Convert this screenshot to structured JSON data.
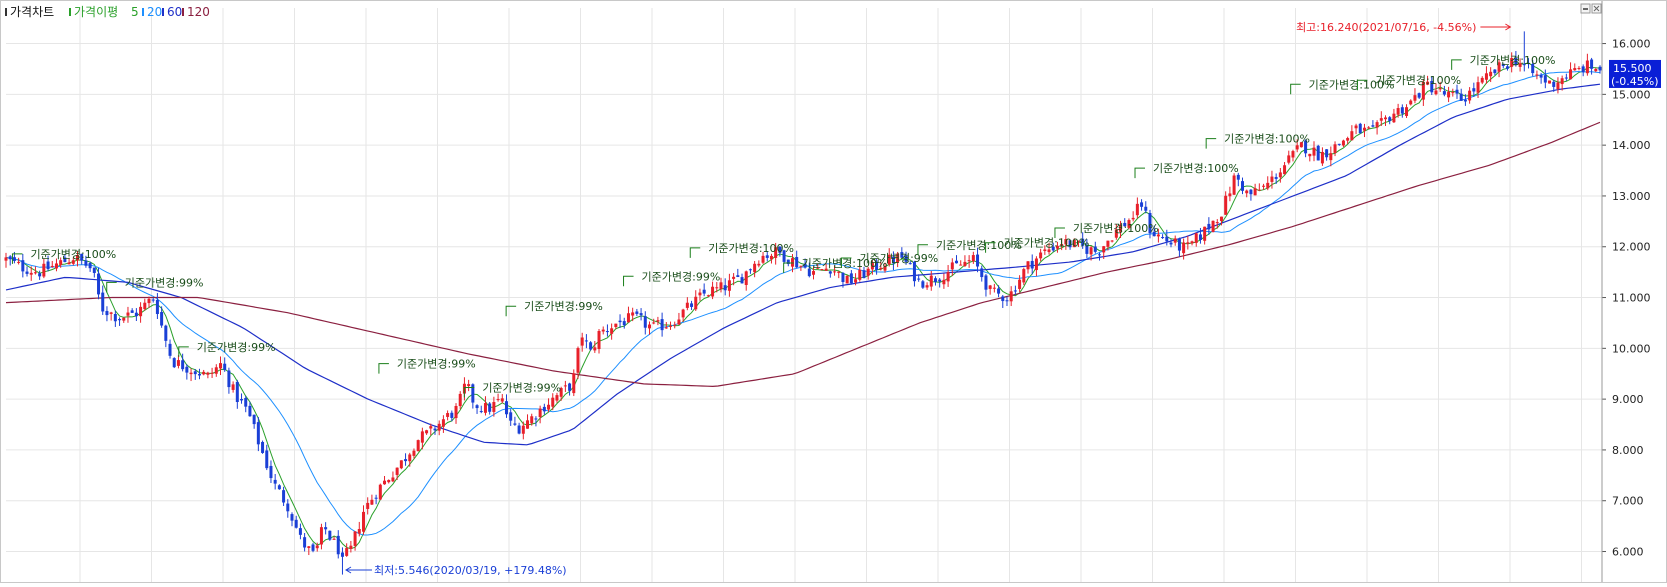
{
  "legend": {
    "title": "가격차트",
    "ma_label": "가격이평",
    "periods": [
      "5",
      "20",
      "60",
      "120"
    ]
  },
  "colors": {
    "up": "#e8202a",
    "down": "#1a3fd6",
    "ma5": "#2aa02a",
    "ma20": "#1e90ff",
    "ma60": "#1e2fc8",
    "ma120": "#8b2040",
    "grid": "#e6e6e6",
    "annotation": "#1a7f1a",
    "high": "#e8202a",
    "low": "#1a3fd6",
    "price_box": "#0a1fd6"
  },
  "icons": [
    "minimize-icon",
    "close-icon"
  ],
  "chart_data": {
    "type": "candlestick",
    "title": "가격차트",
    "y_axis": {
      "ticks": [
        "6.000",
        "7.000",
        "8.000",
        "9.000",
        "10.000",
        "11.000",
        "12.000",
        "13.000",
        "14.000",
        "15.000",
        "16.000"
      ],
      "ylim": [
        5.4,
        16.7
      ]
    },
    "grid": true,
    "x_range": [
      2019.833,
      2021.625
    ],
    "current_price": {
      "value": "15.500",
      "change": "(-0.45%)",
      "numeric": 15.5
    },
    "high_marker": {
      "text": "최고:16.240(2021/07/16, -4.56%)",
      "x": 2021.54,
      "y": 16.24
    },
    "low_marker": {
      "text": "최저:5.546(2020/03/19, +179.48%)",
      "x": 2020.213,
      "y": 5.546
    },
    "annotations": [
      {
        "text": "기준가변경:100%",
        "x": 2019.838,
        "y": 11.78
      },
      {
        "text": "기준가변경:99%",
        "x": 2019.944,
        "y": 11.22
      },
      {
        "text": "기준가변경:99%",
        "x": 2020.025,
        "y": 9.95
      },
      {
        "text": "기준가변경:99%",
        "x": 2020.25,
        "y": 9.62
      },
      {
        "text": "기준가변경:99%",
        "x": 2020.346,
        "y": 9.15
      },
      {
        "text": "기준가변경:99%",
        "x": 2020.393,
        "y": 10.75
      },
      {
        "text": "기준가변경:99%",
        "x": 2020.525,
        "y": 11.34
      },
      {
        "text": "기준가변경:100%",
        "x": 2020.6,
        "y": 11.9
      },
      {
        "text": "기준가변경:100%",
        "x": 2020.705,
        "y": 11.6
      },
      {
        "text": "기준가변경:99%",
        "x": 2020.77,
        "y": 11.7
      },
      {
        "text": "기준가변경:100%",
        "x": 2020.856,
        "y": 11.96
      },
      {
        "text": "기준가변경:100%",
        "x": 2020.932,
        "y": 12.0
      },
      {
        "text": "기준가변경:100%",
        "x": 2021.01,
        "y": 12.29
      },
      {
        "text": "기준가변경:100%",
        "x": 2021.1,
        "y": 13.47
      },
      {
        "text": "기준가변경:100%",
        "x": 2021.18,
        "y": 14.05
      },
      {
        "text": "기준가변경:100%",
        "x": 2021.275,
        "y": 15.12
      },
      {
        "text": "기준가변경:100%",
        "x": 2021.35,
        "y": 15.2
      },
      {
        "text": "기준가변경:100%",
        "x": 2021.456,
        "y": 15.6
      }
    ],
    "close_keypoints": [
      [
        2019.833,
        11.75
      ],
      [
        2019.85,
        11.6
      ],
      [
        2019.87,
        11.5
      ],
      [
        2019.89,
        11.65
      ],
      [
        2019.91,
        11.8
      ],
      [
        2019.93,
        11.55
      ],
      [
        2019.94,
        10.8
      ],
      [
        2019.96,
        10.6
      ],
      [
        2019.98,
        10.7
      ],
      [
        2019.995,
        10.95
      ],
      [
        2020.0,
        11.0
      ],
      [
        2020.01,
        10.3
      ],
      [
        2020.02,
        9.75
      ],
      [
        2020.04,
        9.6
      ],
      [
        2020.06,
        9.45
      ],
      [
        2020.075,
        9.7
      ],
      [
        2020.09,
        9.1
      ],
      [
        2020.105,
        8.75
      ],
      [
        2020.12,
        8.0
      ],
      [
        2020.135,
        7.3
      ],
      [
        2020.15,
        6.9
      ],
      [
        2020.165,
        6.2
      ],
      [
        2020.18,
        5.9
      ],
      [
        2020.19,
        6.5
      ],
      [
        2020.2,
        6.2
      ],
      [
        2020.213,
        5.9
      ],
      [
        2020.22,
        6.0
      ],
      [
        2020.235,
        6.8
      ],
      [
        2020.25,
        7.2
      ],
      [
        2020.265,
        7.5
      ],
      [
        2020.28,
        7.8
      ],
      [
        2020.295,
        8.2
      ],
      [
        2020.31,
        8.35
      ],
      [
        2020.325,
        8.6
      ],
      [
        2020.34,
        8.8
      ],
      [
        2020.35,
        9.3
      ],
      [
        2020.36,
        8.9
      ],
      [
        2020.375,
        8.8
      ],
      [
        2020.39,
        9.0
      ],
      [
        2020.4,
        8.5
      ],
      [
        2020.41,
        8.45
      ],
      [
        2020.425,
        8.65
      ],
      [
        2020.44,
        8.9
      ],
      [
        2020.455,
        9.1
      ],
      [
        2020.47,
        9.3
      ],
      [
        2020.48,
        10.3
      ],
      [
        2020.49,
        9.9
      ],
      [
        2020.5,
        10.3
      ],
      [
        2020.52,
        10.5
      ],
      [
        2020.54,
        10.6
      ],
      [
        2020.56,
        10.4
      ],
      [
        2020.58,
        10.5
      ],
      [
        2020.6,
        10.8
      ],
      [
        2020.62,
        11.1
      ],
      [
        2020.64,
        11.2
      ],
      [
        2020.66,
        11.4
      ],
      [
        2020.68,
        11.8
      ],
      [
        2020.7,
        11.9
      ],
      [
        2020.72,
        11.7
      ],
      [
        2020.74,
        11.5
      ],
      [
        2020.76,
        11.6
      ],
      [
        2020.78,
        11.3
      ],
      [
        2020.8,
        11.5
      ],
      [
        2020.82,
        11.7
      ],
      [
        2020.84,
        11.8
      ],
      [
        2020.86,
        11.3
      ],
      [
        2020.88,
        11.4
      ],
      [
        2020.9,
        11.6
      ],
      [
        2020.92,
        11.75
      ],
      [
        2020.94,
        11.1
      ],
      [
        2020.96,
        11.0
      ],
      [
        2020.98,
        11.6
      ],
      [
        2021.0,
        11.9
      ],
      [
        2021.02,
        12.1
      ],
      [
        2021.04,
        12.0
      ],
      [
        2021.06,
        11.9
      ],
      [
        2021.08,
        12.3
      ],
      [
        2021.1,
        12.6
      ],
      [
        2021.11,
        12.85
      ],
      [
        2021.12,
        12.3
      ],
      [
        2021.14,
        12.1
      ],
      [
        2021.16,
        11.95
      ],
      [
        2021.18,
        12.3
      ],
      [
        2021.2,
        12.7
      ],
      [
        2021.215,
        13.4
      ],
      [
        2021.23,
        13.0
      ],
      [
        2021.25,
        13.2
      ],
      [
        2021.27,
        13.6
      ],
      [
        2021.29,
        14.0
      ],
      [
        2021.31,
        13.8
      ],
      [
        2021.33,
        14.0
      ],
      [
        2021.35,
        14.3
      ],
      [
        2021.37,
        14.25
      ],
      [
        2021.39,
        14.6
      ],
      [
        2021.41,
        14.8
      ],
      [
        2021.43,
        15.2
      ],
      [
        2021.45,
        15.0
      ],
      [
        2021.47,
        14.9
      ],
      [
        2021.49,
        15.2
      ],
      [
        2021.51,
        15.5
      ],
      [
        2021.53,
        15.7
      ],
      [
        2021.55,
        15.4
      ],
      [
        2021.57,
        15.2
      ],
      [
        2021.59,
        15.4
      ],
      [
        2021.61,
        15.55
      ],
      [
        2021.625,
        15.5
      ]
    ],
    "ma60_keypoints": [
      [
        2019.833,
        11.15
      ],
      [
        2019.9,
        11.4
      ],
      [
        2019.97,
        11.3
      ],
      [
        2020.03,
        11.0
      ],
      [
        2020.1,
        10.4
      ],
      [
        2020.17,
        9.6
      ],
      [
        2020.24,
        9.0
      ],
      [
        2020.31,
        8.5
      ],
      [
        2020.37,
        8.15
      ],
      [
        2020.42,
        8.1
      ],
      [
        2020.47,
        8.4
      ],
      [
        2020.52,
        9.1
      ],
      [
        2020.58,
        9.8
      ],
      [
        2020.64,
        10.4
      ],
      [
        2020.7,
        10.9
      ],
      [
        2020.76,
        11.2
      ],
      [
        2020.83,
        11.4
      ],
      [
        2020.9,
        11.5
      ],
      [
        2020.97,
        11.6
      ],
      [
        2021.03,
        11.7
      ],
      [
        2021.1,
        11.9
      ],
      [
        2021.16,
        12.2
      ],
      [
        2021.22,
        12.6
      ],
      [
        2021.28,
        13.0
      ],
      [
        2021.34,
        13.4
      ],
      [
        2021.4,
        14.0
      ],
      [
        2021.46,
        14.55
      ],
      [
        2021.52,
        14.9
      ],
      [
        2021.58,
        15.1
      ],
      [
        2021.625,
        15.2
      ]
    ],
    "ma120_keypoints": [
      [
        2019.833,
        10.9
      ],
      [
        2019.95,
        11.0
      ],
      [
        2020.05,
        11.0
      ],
      [
        2020.15,
        10.7
      ],
      [
        2020.25,
        10.3
      ],
      [
        2020.35,
        9.9
      ],
      [
        2020.45,
        9.55
      ],
      [
        2020.55,
        9.3
      ],
      [
        2020.63,
        9.25
      ],
      [
        2020.72,
        9.5
      ],
      [
        2020.79,
        10.0
      ],
      [
        2020.86,
        10.5
      ],
      [
        2020.93,
        10.9
      ],
      [
        2021.0,
        11.2
      ],
      [
        2021.07,
        11.5
      ],
      [
        2021.14,
        11.75
      ],
      [
        2021.21,
        12.05
      ],
      [
        2021.28,
        12.4
      ],
      [
        2021.35,
        12.8
      ],
      [
        2021.42,
        13.2
      ],
      [
        2021.5,
        13.6
      ],
      [
        2021.57,
        14.05
      ],
      [
        2021.625,
        14.45
      ]
    ]
  }
}
